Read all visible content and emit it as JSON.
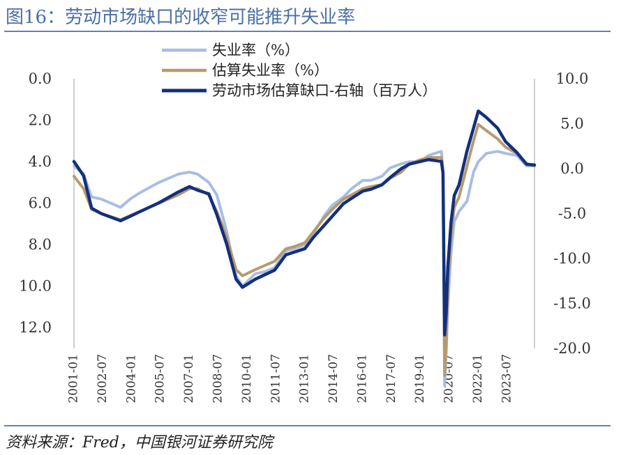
{
  "title": "图16：劳动市场缺口的收窄可能推升失业率",
  "source": "资料来源：Fred，中国银河证券研究院",
  "chart_data": {
    "type": "line",
    "title": "",
    "xlabel": "",
    "ylabel": "",
    "y_left_lim": [
      0,
      13
    ],
    "y_left_inverted": true,
    "y_left_ticks": [
      "0.0",
      "2.0",
      "4.0",
      "6.0",
      "8.0",
      "10.0",
      "12.0"
    ],
    "y_right_lim": [
      10,
      -20
    ],
    "y_right_ticks": [
      "10.0",
      "5.0",
      "0.0",
      "-5.0",
      "-10.0",
      "-15.0",
      "-20.0"
    ],
    "x_ticks": [
      "2001-01",
      "2002-07",
      "2004-01",
      "2005-07",
      "2007-01",
      "2008-07",
      "2010-01",
      "2011-07",
      "2013-01",
      "2014-07",
      "2016-01",
      "2017-07",
      "2019-01",
      "2020-07",
      "2022-01",
      "2023-07"
    ],
    "x_range": [
      "2001-01",
      "2024-12"
    ],
    "grid": false,
    "legend_position": "top-center",
    "series": [
      {
        "name": "失业率（%）",
        "axis": "left",
        "color": "#a7bde6",
        "points": [
          [
            "2001-01",
            4.2
          ],
          [
            "2001-07",
            4.6
          ],
          [
            "2001-12",
            5.7
          ],
          [
            "2002-06",
            5.8
          ],
          [
            "2003-06",
            6.2
          ],
          [
            "2003-12",
            5.8
          ],
          [
            "2004-06",
            5.5
          ],
          [
            "2005-06",
            5.0
          ],
          [
            "2006-06",
            4.6
          ],
          [
            "2007-01",
            4.5
          ],
          [
            "2007-06",
            4.6
          ],
          [
            "2008-01",
            5.0
          ],
          [
            "2008-06",
            5.6
          ],
          [
            "2008-12",
            7.3
          ],
          [
            "2009-06",
            9.5
          ],
          [
            "2009-10",
            10.0
          ],
          [
            "2010-06",
            9.4
          ],
          [
            "2010-12",
            9.3
          ],
          [
            "2011-06",
            9.1
          ],
          [
            "2012-01",
            8.3
          ],
          [
            "2012-06",
            8.2
          ],
          [
            "2013-01",
            8.0
          ],
          [
            "2013-06",
            7.5
          ],
          [
            "2014-01",
            6.6
          ],
          [
            "2014-06",
            6.1
          ],
          [
            "2015-01",
            5.7
          ],
          [
            "2015-06",
            5.3
          ],
          [
            "2016-01",
            4.9
          ],
          [
            "2016-06",
            4.9
          ],
          [
            "2017-01",
            4.7
          ],
          [
            "2017-06",
            4.3
          ],
          [
            "2018-01",
            4.1
          ],
          [
            "2018-06",
            4.0
          ],
          [
            "2019-01",
            4.0
          ],
          [
            "2019-06",
            3.7
          ],
          [
            "2020-02",
            3.5
          ],
          [
            "2020-03",
            4.4
          ],
          [
            "2020-04",
            14.8
          ],
          [
            "2020-05",
            13.2
          ],
          [
            "2020-06",
            11.0
          ],
          [
            "2020-08",
            8.4
          ],
          [
            "2020-10",
            6.9
          ],
          [
            "2021-01",
            6.4
          ],
          [
            "2021-06",
            5.9
          ],
          [
            "2021-10",
            4.5
          ],
          [
            "2022-01",
            4.0
          ],
          [
            "2022-06",
            3.6
          ],
          [
            "2023-01",
            3.5
          ],
          [
            "2023-06",
            3.6
          ],
          [
            "2024-01",
            3.7
          ],
          [
            "2024-07",
            4.2
          ],
          [
            "2024-12",
            4.2
          ]
        ]
      },
      {
        "name": "估算失业率（%）",
        "axis": "left",
        "color": "#b89a6c",
        "points": [
          [
            "2001-01",
            4.7
          ],
          [
            "2001-07",
            5.3
          ],
          [
            "2001-12",
            6.3
          ],
          [
            "2002-06",
            6.5
          ],
          [
            "2003-06",
            6.8
          ],
          [
            "2003-12",
            6.6
          ],
          [
            "2004-06",
            6.4
          ],
          [
            "2005-06",
            6.0
          ],
          [
            "2006-06",
            5.6
          ],
          [
            "2007-01",
            5.3
          ],
          [
            "2007-06",
            5.3
          ],
          [
            "2008-01",
            5.6
          ],
          [
            "2008-06",
            6.4
          ],
          [
            "2008-12",
            7.6
          ],
          [
            "2009-06",
            9.2
          ],
          [
            "2009-10",
            9.5
          ],
          [
            "2010-06",
            9.2
          ],
          [
            "2010-12",
            9.0
          ],
          [
            "2011-06",
            8.8
          ],
          [
            "2012-01",
            8.2
          ],
          [
            "2012-06",
            8.1
          ],
          [
            "2013-01",
            7.9
          ],
          [
            "2013-06",
            7.4
          ],
          [
            "2014-01",
            6.7
          ],
          [
            "2014-06",
            6.3
          ],
          [
            "2015-01",
            5.8
          ],
          [
            "2015-06",
            5.6
          ],
          [
            "2016-01",
            5.3
          ],
          [
            "2016-06",
            5.2
          ],
          [
            "2017-01",
            5.1
          ],
          [
            "2017-06",
            4.8
          ],
          [
            "2018-01",
            4.5
          ],
          [
            "2018-06",
            4.1
          ],
          [
            "2019-01",
            3.9
          ],
          [
            "2019-06",
            3.8
          ],
          [
            "2020-02",
            3.8
          ],
          [
            "2020-03",
            4.6
          ],
          [
            "2020-04",
            14.3
          ],
          [
            "2020-05",
            12.8
          ],
          [
            "2020-06",
            10.0
          ],
          [
            "2020-08",
            7.6
          ],
          [
            "2020-10",
            6.2
          ],
          [
            "2021-01",
            5.7
          ],
          [
            "2021-06",
            4.2
          ],
          [
            "2021-10",
            3.0
          ],
          [
            "2022-01",
            2.2
          ],
          [
            "2022-06",
            2.5
          ],
          [
            "2023-01",
            2.9
          ],
          [
            "2023-06",
            3.3
          ],
          [
            "2024-01",
            3.6
          ],
          [
            "2024-07",
            4.1
          ],
          [
            "2024-12",
            4.2
          ]
        ]
      },
      {
        "name": "劳动市场估算缺口-右轴（百万人）",
        "axis": "right",
        "color": "#13307c",
        "points": [
          [
            "2001-01",
            0.8
          ],
          [
            "2001-07",
            -0.8
          ],
          [
            "2001-12",
            -4.4
          ],
          [
            "2002-06",
            -5.0
          ],
          [
            "2003-06",
            -5.8
          ],
          [
            "2003-12",
            -5.3
          ],
          [
            "2004-06",
            -4.8
          ],
          [
            "2005-06",
            -3.8
          ],
          [
            "2006-06",
            -2.6
          ],
          [
            "2007-01",
            -2.0
          ],
          [
            "2007-06",
            -2.4
          ],
          [
            "2008-01",
            -2.8
          ],
          [
            "2008-06",
            -5.1
          ],
          [
            "2008-12",
            -8.3
          ],
          [
            "2009-06",
            -12.3
          ],
          [
            "2009-10",
            -13.2
          ],
          [
            "2010-06",
            -12.3
          ],
          [
            "2010-12",
            -11.8
          ],
          [
            "2011-06",
            -11.3
          ],
          [
            "2012-01",
            -9.6
          ],
          [
            "2012-06",
            -9.3
          ],
          [
            "2013-01",
            -8.9
          ],
          [
            "2013-06",
            -7.7
          ],
          [
            "2014-01",
            -6.3
          ],
          [
            "2014-06",
            -5.3
          ],
          [
            "2015-01",
            -3.9
          ],
          [
            "2015-06",
            -3.3
          ],
          [
            "2016-01",
            -2.5
          ],
          [
            "2016-06",
            -2.3
          ],
          [
            "2017-01",
            -1.8
          ],
          [
            "2017-06",
            -1.0
          ],
          [
            "2018-01",
            0.0
          ],
          [
            "2018-06",
            0.5
          ],
          [
            "2019-01",
            0.8
          ],
          [
            "2019-06",
            1.0
          ],
          [
            "2020-02",
            0.8
          ],
          [
            "2020-03",
            -0.5
          ],
          [
            "2020-04",
            -18.5
          ],
          [
            "2020-05",
            -16.0
          ],
          [
            "2020-06",
            -11.0
          ],
          [
            "2020-08",
            -6.0
          ],
          [
            "2020-10",
            -3.0
          ],
          [
            "2021-01",
            -1.8
          ],
          [
            "2021-06",
            2.0
          ],
          [
            "2021-10",
            4.5
          ],
          [
            "2022-01",
            6.4
          ],
          [
            "2022-06",
            5.7
          ],
          [
            "2023-01",
            4.5
          ],
          [
            "2023-06",
            3.0
          ],
          [
            "2024-01",
            1.8
          ],
          [
            "2024-07",
            0.5
          ],
          [
            "2024-12",
            0.4
          ]
        ]
      }
    ]
  }
}
